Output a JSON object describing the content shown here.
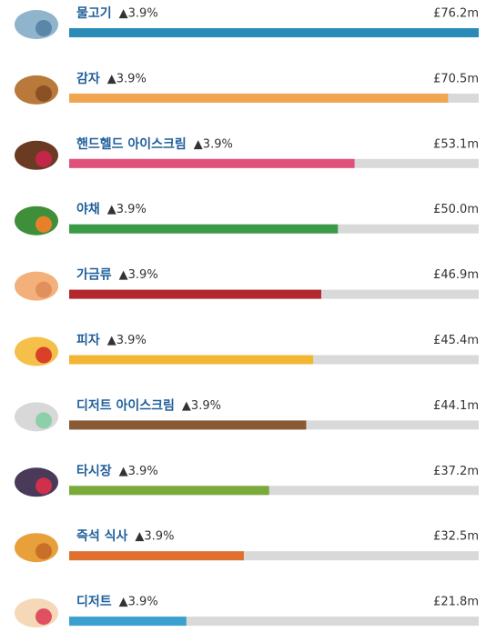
{
  "chart_data": {
    "type": "bar",
    "orientation": "horizontal",
    "categories": [
      "물고기",
      "감자",
      "핸드헬드 아이스크림",
      "야채",
      "가금류",
      "피자",
      "디저트 아이스크림",
      "타시장",
      "즉석 식사",
      "디저트"
    ],
    "change_labels": [
      "▲3.9%",
      "▲3.9%",
      "▲3.9%",
      "▲3.9%",
      "▲3.9%",
      "▲3.9%",
      "▲3.9%",
      "▲3.9%",
      "▲3.9%",
      "▲3.9%"
    ],
    "values": [
      76.2,
      70.5,
      53.1,
      50.0,
      46.9,
      45.4,
      44.1,
      37.2,
      32.5,
      21.8
    ],
    "value_labels": [
      "£76.2m",
      "£70.5m",
      "£53.1m",
      "£50.0m",
      "£46.9m",
      "£45.4m",
      "£44.1m",
      "£37.2m",
      "£32.5m",
      "£21.8m"
    ],
    "colors": [
      "#2a8ab8",
      "#f0a550",
      "#e0507a",
      "#3a9a48",
      "#b3282e",
      "#f2b632",
      "#8a5a35",
      "#7aaa3a",
      "#e07030",
      "#3aa0d0"
    ],
    "xlim": [
      0,
      76.2
    ]
  }
}
